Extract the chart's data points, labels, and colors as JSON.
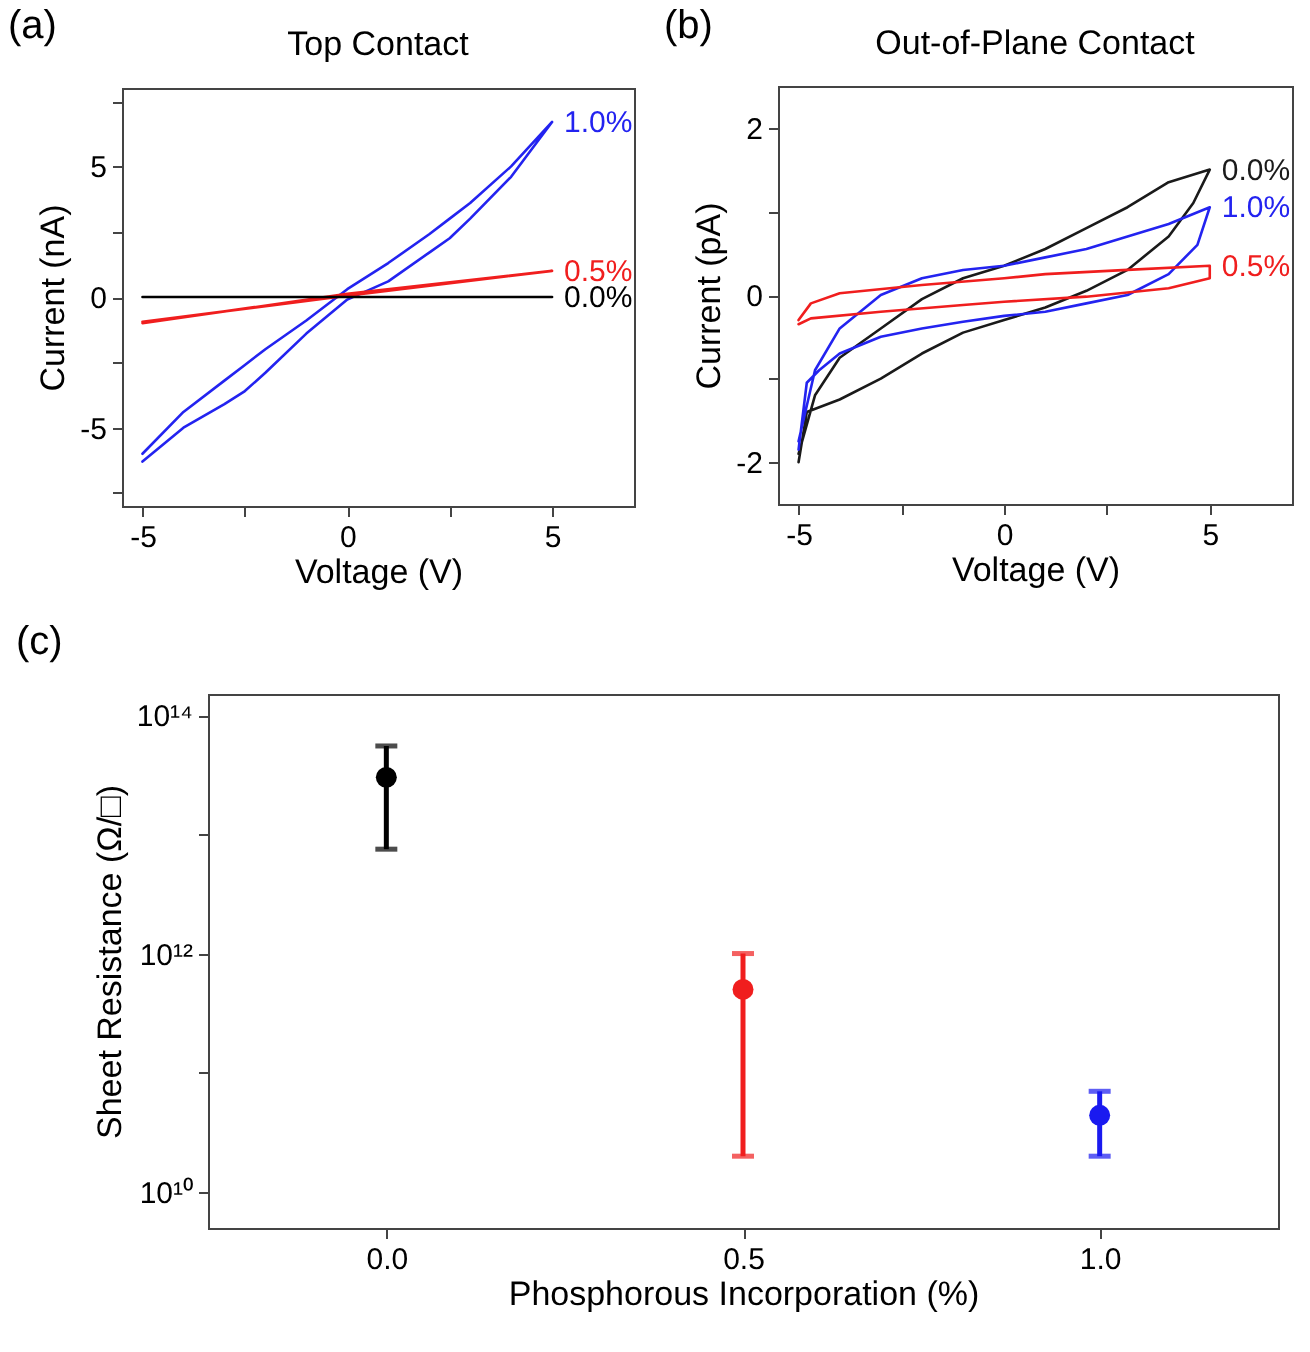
{
  "chart_data": [
    {
      "type": "line",
      "title": "Top Contact",
      "xlabel": "Voltage (V)",
      "ylabel": "Current (nA)",
      "annotations": [
        "(a)"
      ],
      "xlim": [
        -5.5,
        7
      ],
      "ylim": [
        -8,
        8
      ],
      "xticks": [
        -5,
        {
          "value": -2.5,
          "label": null
        },
        0,
        {
          "value": 2.5,
          "label": null
        },
        5
      ],
      "yticks": [
        {
          "value": -7.5,
          "label": null
        },
        -5,
        {
          "value": -2.5,
          "label": null
        },
        0,
        {
          "value": 2.5,
          "label": null
        },
        5,
        {
          "value": 7.5,
          "label": null
        }
      ],
      "grid": false,
      "legend": false,
      "line_style": "solid",
      "series": [
        {
          "name": "1.0%",
          "color": "#2323f0",
          "x": [
            -5,
            -4,
            -3,
            -2.5,
            -2,
            -1,
            0,
            1,
            2,
            2.5,
            3,
            4,
            5,
            4,
            3,
            2.5,
            2,
            1,
            0,
            -1,
            -2,
            -2.5,
            -3,
            -4,
            -5
          ],
          "values": [
            -6.0,
            -4.4,
            -3.2,
            -2.6,
            -2.0,
            -0.9,
            0.3,
            1.3,
            2.4,
            3.0,
            3.6,
            5.0,
            6.7,
            4.6,
            3.0,
            2.25,
            1.7,
            0.6,
            -0.1,
            -1.4,
            -2.9,
            -3.6,
            -4.1,
            -5.0,
            -6.3
          ]
        },
        {
          "name": "0.5%",
          "color": "#f01e1e",
          "x": [
            -5,
            0,
            5,
            0,
            -5
          ],
          "values": [
            -0.95,
            0.05,
            1.0,
            0.12,
            -1.0
          ]
        },
        {
          "name": "0.0%",
          "color": "#000000",
          "x": [
            -5,
            5
          ],
          "values": [
            0,
            0
          ]
        }
      ]
    },
    {
      "type": "line",
      "title": "Out-of-Plane Contact",
      "xlabel": "Voltage (V)",
      "ylabel": "Current (pA)",
      "annotations": [
        "(b)"
      ],
      "xlim": [
        -5.5,
        7
      ],
      "ylim": [
        -2.5,
        2.5
      ],
      "xticks": [
        -5,
        {
          "value": -2.5,
          "label": null
        },
        0,
        {
          "value": 2.5,
          "label": null
        },
        5
      ],
      "yticks": [
        -2,
        {
          "value": -1,
          "label": null
        },
        0,
        {
          "value": 1,
          "label": null
        },
        2
      ],
      "grid": false,
      "legend": false,
      "line_style": "solid",
      "series": [
        {
          "name": "0.0%",
          "color": "#1a1a1a",
          "x": [
            -5,
            -4.8,
            -4,
            -3,
            -2,
            -1,
            0,
            1,
            2,
            3,
            4,
            4.6,
            5,
            4,
            3,
            2,
            1,
            0,
            -1,
            -2,
            -3,
            -4,
            -4.6,
            -5
          ],
          "values": [
            -2.0,
            -1.4,
            -1.25,
            -1.0,
            -0.7,
            -0.45,
            -0.3,
            -0.15,
            0.05,
            0.3,
            0.7,
            1.1,
            1.5,
            1.35,
            1.05,
            0.8,
            0.55,
            0.35,
            0.2,
            -0.05,
            -0.4,
            -0.75,
            -1.2,
            -1.9
          ]
        },
        {
          "name": "1.0%",
          "color": "#2323f0",
          "x": [
            -5,
            -4.8,
            -4.5,
            -4,
            -3,
            -2,
            -1,
            0,
            1,
            2,
            3,
            4,
            4.7,
            5,
            4,
            3,
            2,
            1,
            0,
            -1,
            -2,
            -3,
            -4,
            -4.6,
            -5
          ],
          "values": [
            -1.85,
            -1.05,
            -0.9,
            -0.7,
            -0.5,
            -0.4,
            -0.32,
            -0.25,
            -0.2,
            -0.1,
            0.0,
            0.25,
            0.6,
            1.05,
            0.85,
            0.7,
            0.55,
            0.45,
            0.35,
            0.3,
            0.2,
            0.0,
            -0.4,
            -0.9,
            -1.75
          ]
        },
        {
          "name": "0.5%",
          "color": "#f01e1e",
          "x": [
            -5,
            -4.7,
            -3,
            -1,
            0,
            2,
            4,
            5,
            5,
            3,
            1,
            0,
            -2,
            -4,
            -4.7,
            -5
          ],
          "values": [
            -0.35,
            -0.28,
            -0.2,
            -0.12,
            -0.08,
            -0.02,
            0.08,
            0.2,
            0.35,
            0.3,
            0.25,
            0.2,
            0.12,
            0.02,
            -0.1,
            -0.3
          ]
        }
      ]
    },
    {
      "type": "scatter",
      "xlabel": "Phosphorous Incorporation (%)",
      "ylabel": "Sheet Resistance (Ω/□)",
      "annotations": [
        "(c)"
      ],
      "xlim": [
        -0.25,
        1.25
      ],
      "ylim": [
        5000000000.0,
        150000000000000.0
      ],
      "log": true,
      "xticks": [
        {
          "value": 0,
          "label": "0.0"
        },
        {
          "value": 0.5,
          "label": "0.5"
        },
        {
          "value": 1,
          "label": "1.0"
        }
      ],
      "yticks": [
        {
          "value": 10000000000.0,
          "label": "10¹⁰"
        },
        {
          "value": 100000000000.0,
          "label": null
        },
        {
          "value": 1000000000000.0,
          "label": "10¹²"
        },
        {
          "value": 10000000000000.0,
          "label": null
        },
        {
          "value": 100000000000000.0,
          "label": "10¹⁴"
        }
      ],
      "grid": false,
      "legend": false,
      "marker": "circle",
      "x": [
        0,
        0.5,
        1
      ],
      "values": [
        30000000000000.0,
        500000000000.0,
        44000000000.0
      ],
      "colors": [
        "#000000",
        "#f01e1e",
        "#1a1af0"
      ],
      "errors": [
        [
          7500000000000.0,
          55000000000000.0
        ],
        [
          20000000000.0,
          1000000000000.0
        ],
        [
          20000000000.0,
          70000000000.0
        ]
      ]
    }
  ]
}
